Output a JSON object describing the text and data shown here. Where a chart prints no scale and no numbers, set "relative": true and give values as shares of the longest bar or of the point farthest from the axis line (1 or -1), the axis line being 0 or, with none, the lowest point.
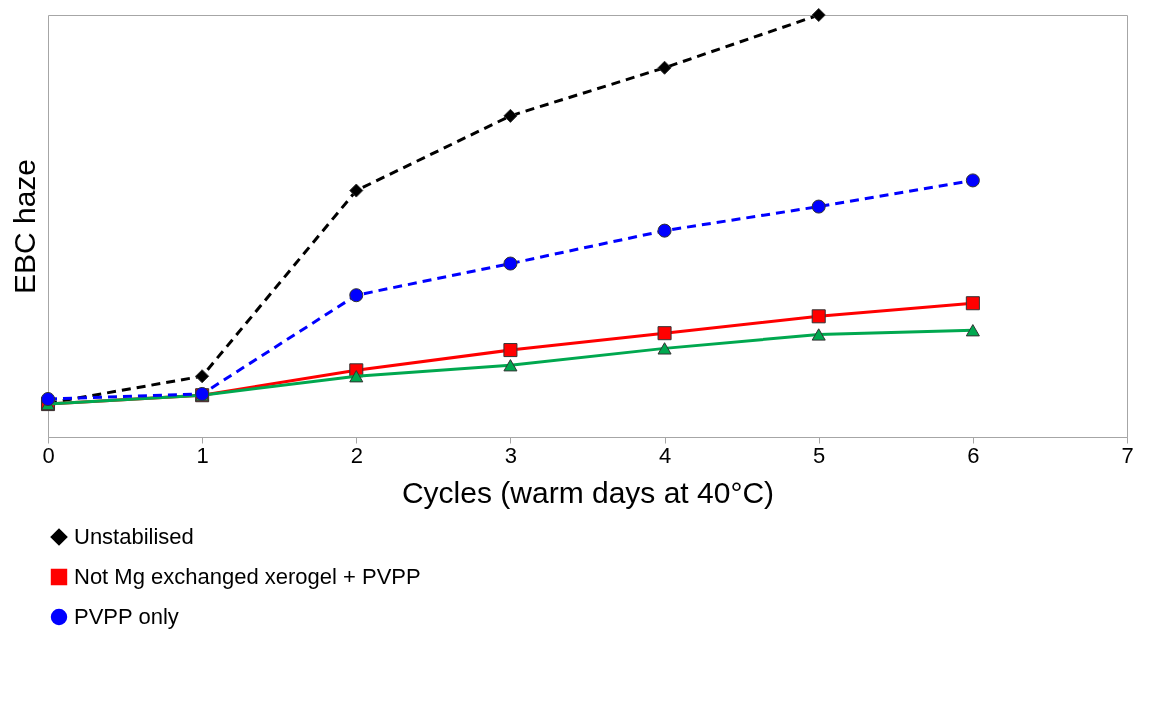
{
  "chart_data": {
    "type": "line",
    "relative": true,
    "xlabel": "Cycles (warm days at 40°C)",
    "ylabel": "EBC haze",
    "x": [
      0,
      1,
      2,
      3,
      4,
      5,
      6
    ],
    "xlim": [
      0,
      7
    ],
    "xticks": [
      0,
      1,
      2,
      3,
      4,
      5,
      6,
      7
    ],
    "grid": false,
    "legend": "bottom",
    "series": [
      {
        "name": "Unstabilised",
        "color": "#000000",
        "marker": "diamond",
        "line_style": "dashed",
        "values": [
          0.08,
          0.144,
          0.584,
          0.761,
          0.875,
          1,
          null
        ]
      },
      {
        "name": "Not Mg exchanged xerogel + PVPP",
        "color": "#ff0000",
        "marker": "square",
        "line_style": "solid",
        "values": [
          0.078,
          0.099,
          0.158,
          0.206,
          0.246,
          0.286,
          0.317
        ]
      },
      {
        "color": "#00a84f",
        "marker": "triangle",
        "line_style": "solid",
        "values": [
          0.078,
          0.099,
          0.144,
          0.17,
          0.21,
          0.243,
          0.253
        ]
      },
      {
        "name": "PVPP only",
        "color": "#0000ff",
        "marker": "circle",
        "line_style": "dashed",
        "values": [
          0.09,
          0.102,
          0.336,
          0.411,
          0.489,
          0.546,
          0.608
        ]
      }
    ]
  }
}
